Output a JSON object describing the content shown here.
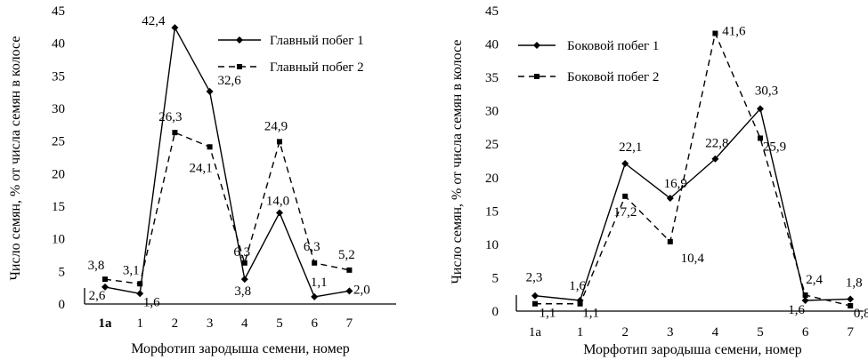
{
  "chart_data": [
    {
      "type": "line",
      "categories": [
        "1a",
        "1",
        "2",
        "3",
        "4",
        "5",
        "6",
        "7"
      ],
      "xlabel": "Морфотип зародыша семени, номер",
      "ylabel": "Число семян, % от числа семян в колосе",
      "ylim": [
        0,
        45
      ],
      "yticks": [
        "0",
        "5",
        "10",
        "15",
        "20",
        "25",
        "30",
        "35",
        "40",
        "45"
      ],
      "legend_position": "top-right",
      "grid": false,
      "series": [
        {
          "name": "Главный побег 1",
          "style": "solid",
          "marker": "diamond",
          "values": [
            2.6,
            1.6,
            42.4,
            32.6,
            3.8,
            14.0,
            1.1,
            2.0
          ],
          "labels": [
            "2,6",
            "1,6",
            "42,4",
            "32,6",
            "3,8",
            "14,0",
            "1,1",
            "2,0"
          ]
        },
        {
          "name": "Главный побег 2",
          "style": "dashed",
          "marker": "square",
          "values": [
            3.8,
            3.1,
            26.3,
            24.1,
            6.3,
            24.9,
            6.3,
            5.2
          ],
          "labels": [
            "3,8",
            "3,1",
            "26,3",
            "24,1",
            "6,3",
            "24,9",
            "6,3",
            "5,2"
          ]
        }
      ]
    },
    {
      "type": "line",
      "categories": [
        "1a",
        "1",
        "2",
        "3",
        "4",
        "5",
        "6",
        "7"
      ],
      "xlabel": "Морфотип зародыша семени, номер",
      "ylabel": "Число семян, % от числа семян в колосе",
      "ylim": [
        0,
        45
      ],
      "yticks": [
        "0",
        "5",
        "10",
        "15",
        "20",
        "25",
        "30",
        "35",
        "40",
        "45"
      ],
      "legend_position": "top-left",
      "grid": false,
      "series": [
        {
          "name": "Боковой побег 1",
          "style": "solid",
          "marker": "diamond",
          "values": [
            2.3,
            1.6,
            22.1,
            16.9,
            22.8,
            30.3,
            1.6,
            1.8
          ],
          "labels": [
            "2,3",
            "1,6",
            "22,1",
            "16,9",
            "22,8",
            "30,3",
            "1,6",
            "1,8"
          ]
        },
        {
          "name": "Боковой побег 2",
          "style": "dashed",
          "marker": "square",
          "values": [
            1.1,
            1.1,
            17.2,
            10.4,
            41.6,
            25.9,
            2.4,
            0.8
          ],
          "labels": [
            "1,1",
            "1,1",
            "17,2",
            "10,4",
            "41,6",
            "25,9",
            "2,4",
            "0,8"
          ]
        }
      ]
    }
  ]
}
